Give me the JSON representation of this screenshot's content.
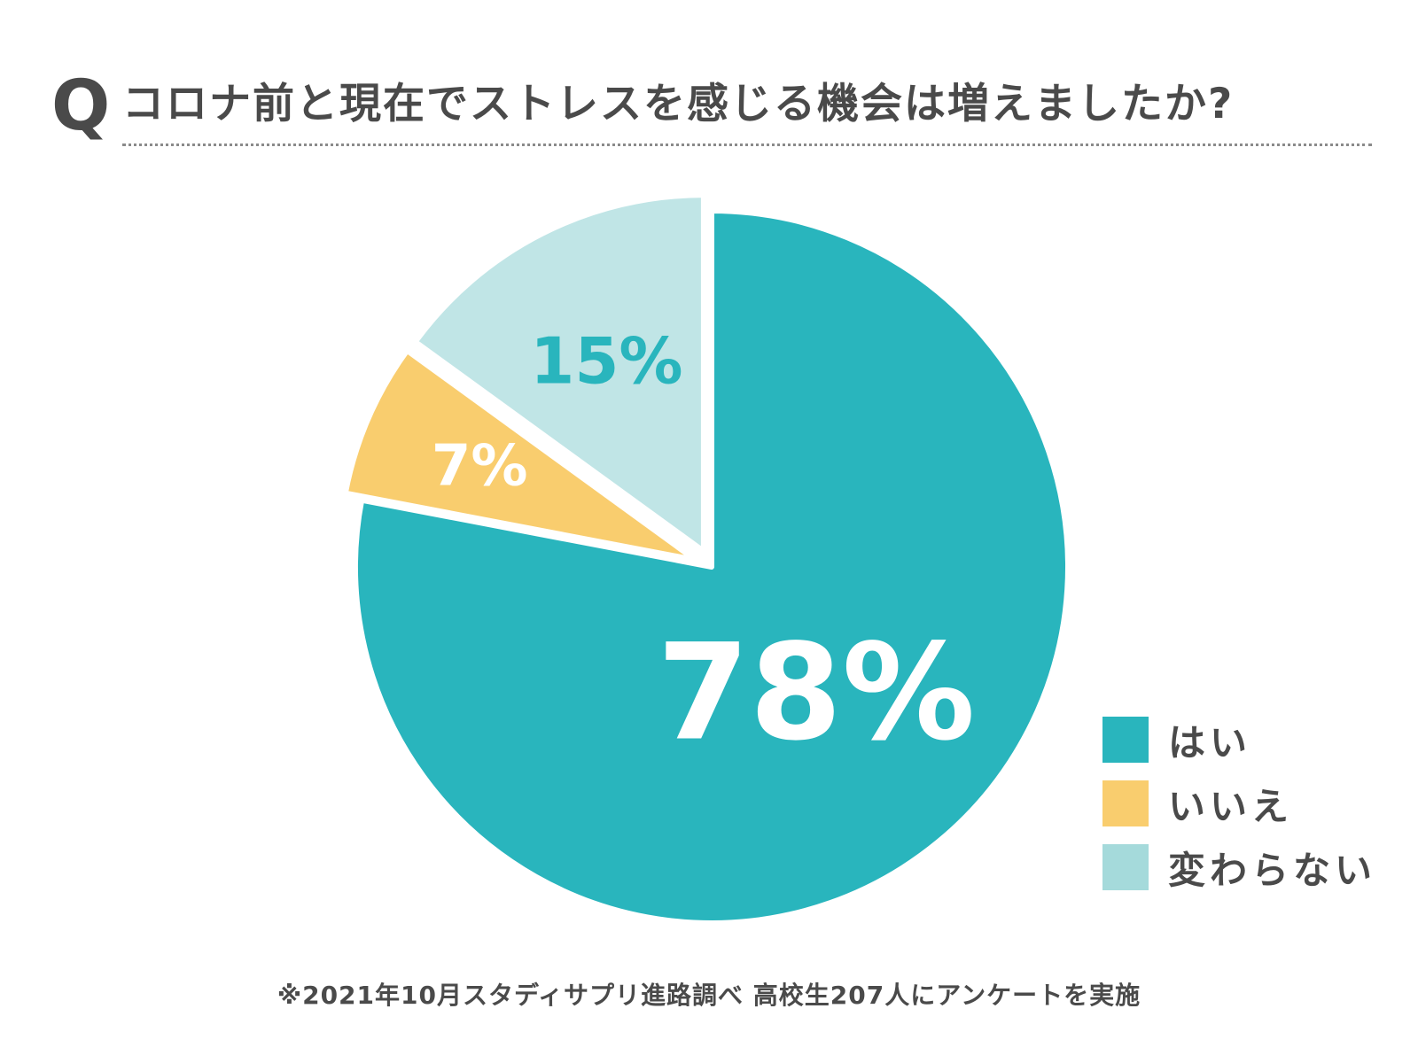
{
  "header": {
    "q_mark": "Q",
    "question": "コロナ前と現在でストレスを感じる機会は増えましたか?"
  },
  "chart_data": {
    "type": "pie",
    "title": "コロナ前と現在でストレスを感じる機会は増えましたか?",
    "start_angle_deg": 0,
    "direction": "clockwise",
    "exploded": [
      "いいえ",
      "変わらない"
    ],
    "slices": [
      {
        "label": "はい",
        "value": 78,
        "value_label": "78%",
        "color": "#29b5bd",
        "label_color": "#ffffff"
      },
      {
        "label": "いいえ",
        "value": 7,
        "value_label": "7%",
        "color": "#f9cd6e",
        "label_color": "#ffffff"
      },
      {
        "label": "変わらない",
        "value": 15,
        "value_label": "15%",
        "color": "#c0e5e6",
        "label_color": "#29b5bd"
      }
    ],
    "legend": {
      "placement": "bottom-right",
      "items": [
        {
          "label": "はい",
          "color": "#29b5bd"
        },
        {
          "label": "いいえ",
          "color": "#f9cd6e"
        },
        {
          "label": "変わらない",
          "color": "#a5dadb"
        }
      ]
    }
  },
  "footnote": "※2021年10月スタディサプリ進路調べ 高校生207人にアンケートを実施"
}
